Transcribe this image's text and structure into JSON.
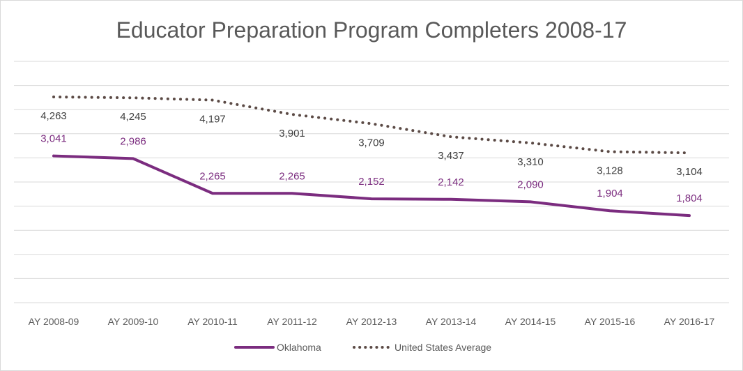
{
  "chart_data": {
    "type": "line",
    "title": "Educator Preparation Program Completers 2008-17",
    "xlabel": "",
    "ylabel": "",
    "categories": [
      "AY 2008-09",
      "AY 2009-10",
      "AY 2010-11",
      "AY 2011-12",
      "AY 2012-13",
      "AY 2013-14",
      "AY 2014-15",
      "AY 2015-16",
      "AY 2016-17"
    ],
    "series": [
      {
        "name": "Oklahoma",
        "values": [
          3041,
          2986,
          2265,
          2265,
          2152,
          2142,
          2090,
          1904,
          1804
        ],
        "labels": [
          "3,041",
          "2,986",
          "2,265",
          "2,265",
          "2,152",
          "2,142",
          "2,090",
          "1,904",
          "1,804"
        ],
        "color": "#7b2c7f",
        "style": "solid"
      },
      {
        "name": "United States Average",
        "values": [
          4263,
          4245,
          4197,
          3901,
          3709,
          3437,
          3310,
          3128,
          3104
        ],
        "labels": [
          "4,263",
          "4,245",
          "4,197",
          "3,901",
          "3,709",
          "3,437",
          "3,310",
          "3,128",
          "3,104"
        ],
        "color": "#5b4a45",
        "style": "dotted"
      }
    ],
    "ylim": [
      0,
      5000
    ],
    "grid": true,
    "legend_position": "bottom"
  }
}
